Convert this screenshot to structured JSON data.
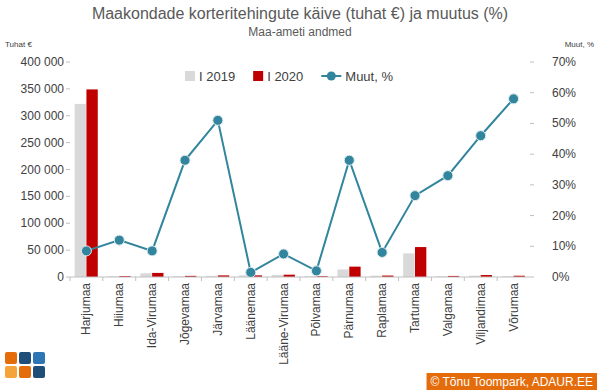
{
  "chart_data": {
    "type": "bar",
    "title": "Maakondade korteritehingute käive (tuhat €) ja muutus (%)",
    "subtitle": "Maa-ameti andmed",
    "y_label": "Tuhat €",
    "y2_label": "Muut, %",
    "annotation": "© Tõnu Toompark, ADAUR.EE",
    "categories": [
      "Harjumaa",
      "Hiiumaa",
      "Ida-Virumaa",
      "Jõgevamaa",
      "Järvamaa",
      "Läänemaa",
      "Lääne-Virumaa",
      "Põlvamaa",
      "Pärnumaa",
      "Raplamaa",
      "Tartumaa",
      "Valgamaa",
      "Viljandimaa",
      "Võrumaa"
    ],
    "series": [
      {
        "name": "I 2019",
        "color": "#d9d9d9",
        "values": [
          322000,
          1500,
          7000,
          1500,
          2000,
          3000,
          4000,
          1500,
          14000,
          2500,
          44000,
          1500,
          2500,
          1500
        ]
      },
      {
        "name": "I 2020",
        "color": "#c00000",
        "values": [
          349000,
          1700,
          7600,
          2100,
          3000,
          3050,
          4300,
          1530,
          19300,
          2700,
          55700,
          2000,
          3650,
          2370
        ]
      },
      {
        "name": "Muut, %",
        "type": "line",
        "axis": "y2",
        "color": "#31859c",
        "marker": "circle",
        "values": [
          8.5,
          12,
          8.5,
          38,
          51,
          1.5,
          7.5,
          2,
          38,
          8,
          26.5,
          33,
          46,
          58
        ]
      }
    ],
    "ylim": [
      0,
      400000
    ],
    "yticks": [
      {
        "value": 0,
        "label": "0"
      },
      {
        "value": 50000,
        "label": "50 000"
      },
      {
        "value": 100000,
        "label": "100 000"
      },
      {
        "value": 150000,
        "label": "150 000"
      },
      {
        "value": 200000,
        "label": "200 000"
      },
      {
        "value": 250000,
        "label": "250 000"
      },
      {
        "value": 300000,
        "label": "300 000"
      },
      {
        "value": 350000,
        "label": "350 000"
      },
      {
        "value": 400000,
        "label": "400 000"
      }
    ],
    "y2lim": [
      0,
      70
    ],
    "y2ticks": [
      {
        "value": 0,
        "label": "0%"
      },
      {
        "value": 10,
        "label": "10%"
      },
      {
        "value": 20,
        "label": "20%"
      },
      {
        "value": 30,
        "label": "30%"
      },
      {
        "value": 40,
        "label": "40%"
      },
      {
        "value": 50,
        "label": "50%"
      },
      {
        "value": 60,
        "label": "60%"
      },
      {
        "value": 70,
        "label": "70%"
      }
    ],
    "grid": false,
    "legend": "top"
  }
}
